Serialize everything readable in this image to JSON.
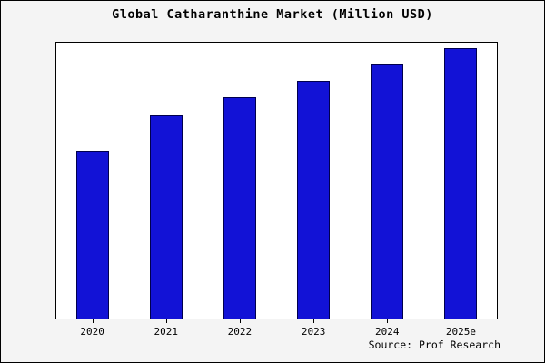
{
  "title": "Global Catharanthine Market (Million USD)",
  "source_label": "Source: Prof Research",
  "colors": {
    "bar_fill": "#1212D6",
    "bar_edge": "#00004d",
    "plot_background": "#ffffff",
    "figure_background": "#f4f4f4",
    "border": "#000000"
  },
  "chart_data": {
    "type": "bar",
    "title": "Global Catharanthine Market (Million USD)",
    "categories": [
      "2020",
      "2021",
      "2022",
      "2023",
      "2024",
      "2025e"
    ],
    "values": [
      62,
      75,
      82,
      88,
      94,
      100
    ],
    "xlabel": "",
    "ylabel": "",
    "ylim": [
      0,
      102
    ],
    "grid": false,
    "legend": false,
    "y_axis_labels_visible": false,
    "source": "Source: Prof Research"
  }
}
